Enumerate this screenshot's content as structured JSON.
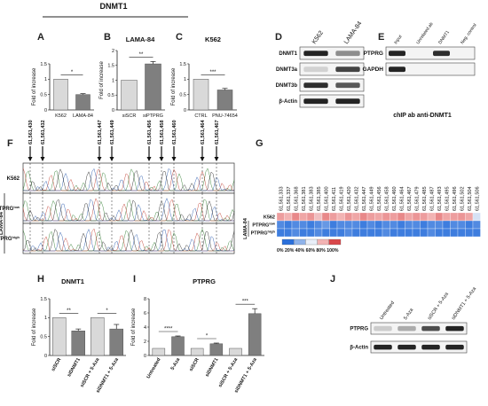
{
  "title": "DNMT1",
  "panels": {
    "A": {
      "label": "A",
      "ylabel": "Fold of increase",
      "sig": "*"
    },
    "B": {
      "label": "B",
      "title": "LAMA-84",
      "ylabel": "Fold of increase",
      "sig": "**"
    },
    "C": {
      "label": "C",
      "title": "K562",
      "ylabel": "Fold of increase",
      "sig": "***"
    },
    "D": {
      "label": "D",
      "columns": [
        "K562",
        "LAMA-84"
      ],
      "rows": [
        "DNMT1",
        "DNMT3a",
        "DNMT3b",
        "β-Actin"
      ]
    },
    "E": {
      "label": "E",
      "columns": [
        "Input",
        "Unrelated ab",
        "DNMT1",
        "Neg. control"
      ],
      "rows": [
        "PTPRG",
        "GAPDH"
      ],
      "caption": "chIP ab anti-DNMT1"
    },
    "F": {
      "label": "F",
      "groups": [
        [
          "61,561,430",
          "61,561,432"
        ],
        [
          "61,561,447",
          "61,561,449"
        ],
        [
          "61,561,456",
          "61,561,458",
          "61,561,460"
        ],
        [
          "61,561,464",
          "61,561,467"
        ]
      ],
      "row_labels": [
        "K562",
        "PTPRGlow",
        "PTPRGhigh"
      ],
      "side_label": "LAMA-84"
    },
    "G": {
      "label": "G",
      "positions": [
        "61,561,333",
        "61,561,337",
        "61,561,368",
        "61,561,381",
        "61,561,383",
        "61,561,385",
        "61,561,400",
        "61,561,411",
        "61,561,419",
        "61,561,420",
        "61,561,432",
        "61,561,447",
        "61,561,449",
        "61,561,456",
        "61,561,458",
        "61,561,460",
        "61,561,464",
        "61,561,467",
        "61,561,479",
        "61,561,485",
        "61,561,487",
        "61,561,493",
        "61,561,495",
        "61,561,496",
        "61,561,502",
        "61,561,504",
        "61,561,506"
      ],
      "rows": [
        "K562",
        "PTPRGlow",
        "PTPRGhigh"
      ],
      "side_label": "LAMA-84",
      "scale_label": "0%  20% 40% 60% 80% 100%",
      "scale_colors": [
        "#2a6fdb",
        "#8fb3ea",
        "#e8eef8",
        "#f2b3b3",
        "#d9474a"
      ]
    },
    "H": {
      "label": "H",
      "title": "DNMT1",
      "ylabel": "Fold of increase",
      "sig": [
        "**",
        "*"
      ]
    },
    "I": {
      "label": "I",
      "title": "PTPRG",
      "ylabel": "Fold of increase",
      "sig": [
        "****",
        "*",
        "***"
      ]
    },
    "J": {
      "label": "J",
      "columns": [
        "Untreated",
        "5-Aza",
        "siSCR + 5-Aza",
        "siDNMT1 + 5-Aza"
      ],
      "rows": [
        "PTPRG",
        "β-Actin"
      ]
    }
  },
  "chart_data": [
    {
      "type": "bar",
      "panel": "A",
      "categories": [
        "K562",
        "LAMA-84"
      ],
      "values": [
        1.0,
        0.5
      ],
      "errors": [
        0,
        0.03
      ],
      "colors": [
        "#d9d9d9",
        "#7f7f7f"
      ],
      "ylabel": "Fold of increase",
      "ylim": [
        0,
        1.5
      ]
    },
    {
      "type": "bar",
      "panel": "B",
      "title": "LAMA-84",
      "categories": [
        "siSCR",
        "siPTPRG"
      ],
      "values": [
        1.0,
        1.55
      ],
      "errors": [
        0,
        0.08
      ],
      "colors": [
        "#d9d9d9",
        "#7f7f7f"
      ],
      "ylabel": "Fold of increase",
      "ylim": [
        0,
        2.0
      ]
    },
    {
      "type": "bar",
      "panel": "C",
      "title": "K562",
      "categories": [
        "CTRL",
        "PNU-74654"
      ],
      "values": [
        1.0,
        0.65
      ],
      "errors": [
        0,
        0.05
      ],
      "colors": [
        "#d9d9d9",
        "#7f7f7f"
      ],
      "ylabel": "Fold of increase",
      "ylim": [
        0,
        1.5
      ]
    },
    {
      "type": "bar",
      "panel": "H",
      "title": "DNMT1",
      "categories": [
        "siSCR",
        "siDNMT1",
        "siSCR + 5-Aza",
        "siDNMT1 + 5-Aza"
      ],
      "values": [
        1.0,
        0.65,
        1.0,
        0.7
      ],
      "errors": [
        0,
        0.05,
        0,
        0.12
      ],
      "colors": [
        "#d9d9d9",
        "#7f7f7f",
        "#d9d9d9",
        "#7f7f7f"
      ],
      "ylabel": "Fold of increase",
      "ylim": [
        0,
        1.5
      ]
    },
    {
      "type": "bar",
      "panel": "I",
      "title": "PTPRG",
      "categories": [
        "Untreated",
        "5-Aza",
        "siSCR",
        "siDNMT1",
        "siSCR + 5-Aza",
        "siDNMT1 + 5-Aza"
      ],
      "values": [
        1.0,
        2.65,
        1.0,
        1.65,
        1.0,
        5.9
      ],
      "errors": [
        0,
        0.1,
        0,
        0.1,
        0,
        0.7
      ],
      "colors": [
        "#d9d9d9",
        "#7f7f7f",
        "#d9d9d9",
        "#7f7f7f",
        "#d9d9d9",
        "#7f7f7f"
      ],
      "ylabel": "Fold of increase",
      "ylim": [
        0,
        8
      ]
    }
  ],
  "heatmap_values": [
    [
      0.8,
      0.75,
      0.85,
      0.78,
      0.82,
      0.7,
      0.85,
      0.8,
      0.75,
      0.82,
      0.78,
      0.85,
      0.8,
      0.78,
      0.82,
      0.8,
      0.85,
      0.78,
      0.82,
      0.8,
      0.75,
      0.85,
      0.78,
      0.8,
      0.82,
      0.78,
      0.45
    ],
    [
      0.1,
      0.05,
      0.1,
      0.1,
      0.05,
      0.1,
      0.15,
      0.05,
      0.1,
      0.1,
      0.1,
      0.05,
      0.1,
      0.05,
      0.1,
      0.1,
      0.05,
      0.1,
      0.1,
      0.05,
      0.1,
      0.1,
      0.05,
      0.1,
      0.1,
      0.05,
      0.1
    ],
    [
      0.05,
      0.05,
      0.1,
      0.05,
      0.05,
      0.1,
      0.05,
      0.05,
      0.05,
      0.1,
      0.05,
      0.05,
      0.05,
      0.05,
      0.1,
      0.05,
      0.05,
      0.05,
      0.05,
      0.05,
      0.1,
      0.05,
      0.05,
      0.05,
      0.05,
      0.05,
      0.05
    ]
  ],
  "blots": {
    "D": [
      [
        0.95,
        0.45
      ],
      [
        0.12,
        0.8
      ],
      [
        0.9,
        0.7
      ],
      [
        0.95,
        0.95
      ]
    ],
    "E": [
      [
        0.95,
        0.0,
        0.9,
        0.0
      ],
      [
        0.95,
        0.0,
        0.0,
        0.0
      ]
    ],
    "J": [
      [
        0.15,
        0.3,
        0.75,
        0.95
      ],
      [
        0.95,
        0.95,
        0.95,
        0.95
      ]
    ]
  }
}
